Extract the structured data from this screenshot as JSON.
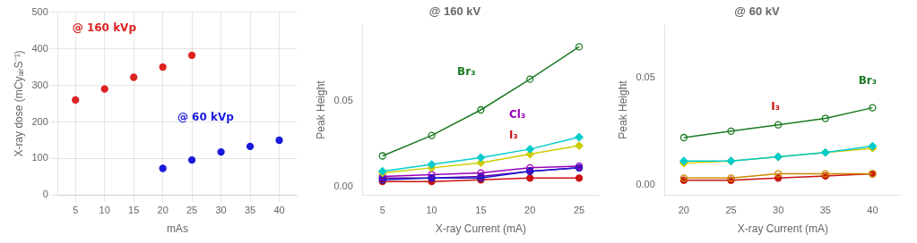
{
  "chart_data": [
    {
      "type": "scatter",
      "xlabel": "mAs",
      "ylabel": "X-ray dose (mCyₐᵢᵣS⁻¹)",
      "xlim": [
        2,
        43
      ],
      "xticks": [
        5,
        10,
        15,
        20,
        25,
        30,
        35,
        40
      ],
      "ylim": [
        0,
        500
      ],
      "yticks": [
        0,
        100,
        200,
        300,
        400,
        500
      ],
      "grid": true,
      "series": [
        {
          "color": "#dd2222",
          "marker": "circle",
          "x": [
            5,
            10,
            15,
            20,
            25
          ],
          "values": [
            260,
            290,
            322,
            350,
            382
          ]
        },
        {
          "color": "#1a1add",
          "marker": "circle",
          "x": [
            20,
            25,
            30,
            35,
            40
          ],
          "values": [
            73,
            96,
            118,
            133,
            150
          ]
        }
      ],
      "annotations": [
        {
          "text": "@ 160 kVp",
          "color": "#dd2222"
        },
        {
          "text": "@ 60 kVp",
          "color": "#1a1add"
        }
      ]
    },
    {
      "type": "line",
      "title": "@ 160 kV",
      "xlabel": "X-ray Current (mA)",
      "ylabel": "Peak Height",
      "xlim": [
        3,
        27
      ],
      "xticks": [
        5,
        10,
        15,
        20,
        25
      ],
      "ylim": [
        -0.005,
        0.095
      ],
      "yticks": [
        {
          "value": 0,
          "label": "0.00"
        },
        {
          "value": 0.05,
          "label": "0.05"
        }
      ],
      "grid": false,
      "x": [
        5,
        10,
        15,
        20,
        25
      ],
      "series": [
        {
          "color": "#1a7a20",
          "marker": "open_circle",
          "values": [
            0.018,
            0.03,
            0.045,
            0.063,
            0.082
          ]
        },
        {
          "color": "#00cccc",
          "marker": "diamond",
          "values": [
            0.009,
            0.013,
            0.017,
            0.022,
            0.029
          ]
        },
        {
          "color": "#cccc00",
          "marker": "diamond",
          "values": [
            0.008,
            0.011,
            0.014,
            0.019,
            0.024
          ]
        },
        {
          "color": "#1a1acc",
          "marker": "open_circle",
          "values": [
            0.004,
            0.005,
            0.005,
            0.009,
            0.011
          ]
        },
        {
          "color": "#9900bb",
          "marker": "open_circle",
          "values": [
            0.006,
            0.007,
            0.008,
            0.011,
            0.012
          ]
        },
        {
          "color": "#6600aa",
          "marker": "circle",
          "values": [
            0.005,
            0.005,
            0.006,
            0.009,
            0.011
          ]
        },
        {
          "color": "#cc1111",
          "marker": "circle",
          "values": [
            0.003,
            0.003,
            0.004,
            0.005,
            0.005
          ]
        }
      ],
      "annotations": [
        {
          "text": "Br₃",
          "color": "#1a7a20"
        },
        {
          "text": "Cl₃",
          "color": "#9900bb"
        },
        {
          "text": "I₃",
          "color": "#cc1111"
        }
      ]
    },
    {
      "type": "line",
      "title": "@ 60 kV",
      "xlabel": "X-ray Current (mA)",
      "ylabel": "Peak Height",
      "xlim": [
        18,
        43
      ],
      "xticks": [
        20,
        25,
        30,
        35,
        40
      ],
      "ylim": [
        -0.005,
        0.075
      ],
      "yticks": [
        {
          "value": 0,
          "label": "0.00"
        },
        {
          "value": 0.05,
          "label": "0.05"
        }
      ],
      "grid": false,
      "x": [
        20,
        25,
        30,
        35,
        40
      ],
      "series": [
        {
          "color": "#1a7a20",
          "marker": "open_circle",
          "values": [
            0.022,
            0.025,
            0.028,
            0.031,
            0.036
          ]
        },
        {
          "color": "#00cccc",
          "marker": "diamond",
          "values": [
            0.011,
            0.011,
            0.013,
            0.015,
            0.018
          ]
        },
        {
          "color": "#cccc00",
          "marker": "diamond",
          "values": [
            0.01,
            0.011,
            0.013,
            0.015,
            0.017
          ]
        },
        {
          "color": "#cc8800",
          "marker": "open_circle",
          "values": [
            0.003,
            0.003,
            0.005,
            0.005,
            0.005
          ]
        },
        {
          "color": "#cc1111",
          "marker": "circle",
          "values": [
            0.002,
            0.002,
            0.003,
            0.004,
            0.005
          ]
        }
      ],
      "annotations": [
        {
          "text": "Br₃",
          "color": "#1a7a20"
        },
        {
          "text": "I₃",
          "color": "#cc1111"
        }
      ]
    }
  ]
}
